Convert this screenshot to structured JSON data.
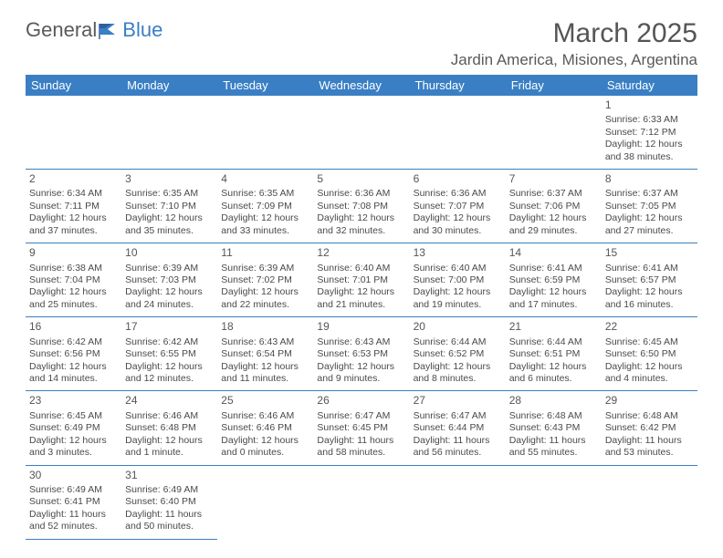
{
  "brand": {
    "part1": "General",
    "part2": "Blue"
  },
  "title": "March 2025",
  "location": "Jardin America, Misiones, Argentina",
  "colors": {
    "accent": "#3a7fc4",
    "text": "#4a4a4a",
    "bg": "#ffffff"
  },
  "weekdays": [
    "Sunday",
    "Monday",
    "Tuesday",
    "Wednesday",
    "Thursday",
    "Friday",
    "Saturday"
  ],
  "weeks": [
    [
      null,
      null,
      null,
      null,
      null,
      null,
      {
        "n": "1",
        "sr": "6:33 AM",
        "ss": "7:12 PM",
        "dl": "12 hours and 38 minutes."
      }
    ],
    [
      {
        "n": "2",
        "sr": "6:34 AM",
        "ss": "7:11 PM",
        "dl": "12 hours and 37 minutes."
      },
      {
        "n": "3",
        "sr": "6:35 AM",
        "ss": "7:10 PM",
        "dl": "12 hours and 35 minutes."
      },
      {
        "n": "4",
        "sr": "6:35 AM",
        "ss": "7:09 PM",
        "dl": "12 hours and 33 minutes."
      },
      {
        "n": "5",
        "sr": "6:36 AM",
        "ss": "7:08 PM",
        "dl": "12 hours and 32 minutes."
      },
      {
        "n": "6",
        "sr": "6:36 AM",
        "ss": "7:07 PM",
        "dl": "12 hours and 30 minutes."
      },
      {
        "n": "7",
        "sr": "6:37 AM",
        "ss": "7:06 PM",
        "dl": "12 hours and 29 minutes."
      },
      {
        "n": "8",
        "sr": "6:37 AM",
        "ss": "7:05 PM",
        "dl": "12 hours and 27 minutes."
      }
    ],
    [
      {
        "n": "9",
        "sr": "6:38 AM",
        "ss": "7:04 PM",
        "dl": "12 hours and 25 minutes."
      },
      {
        "n": "10",
        "sr": "6:39 AM",
        "ss": "7:03 PM",
        "dl": "12 hours and 24 minutes."
      },
      {
        "n": "11",
        "sr": "6:39 AM",
        "ss": "7:02 PM",
        "dl": "12 hours and 22 minutes."
      },
      {
        "n": "12",
        "sr": "6:40 AM",
        "ss": "7:01 PM",
        "dl": "12 hours and 21 minutes."
      },
      {
        "n": "13",
        "sr": "6:40 AM",
        "ss": "7:00 PM",
        "dl": "12 hours and 19 minutes."
      },
      {
        "n": "14",
        "sr": "6:41 AM",
        "ss": "6:59 PM",
        "dl": "12 hours and 17 minutes."
      },
      {
        "n": "15",
        "sr": "6:41 AM",
        "ss": "6:57 PM",
        "dl": "12 hours and 16 minutes."
      }
    ],
    [
      {
        "n": "16",
        "sr": "6:42 AM",
        "ss": "6:56 PM",
        "dl": "12 hours and 14 minutes."
      },
      {
        "n": "17",
        "sr": "6:42 AM",
        "ss": "6:55 PM",
        "dl": "12 hours and 12 minutes."
      },
      {
        "n": "18",
        "sr": "6:43 AM",
        "ss": "6:54 PM",
        "dl": "12 hours and 11 minutes."
      },
      {
        "n": "19",
        "sr": "6:43 AM",
        "ss": "6:53 PM",
        "dl": "12 hours and 9 minutes."
      },
      {
        "n": "20",
        "sr": "6:44 AM",
        "ss": "6:52 PM",
        "dl": "12 hours and 8 minutes."
      },
      {
        "n": "21",
        "sr": "6:44 AM",
        "ss": "6:51 PM",
        "dl": "12 hours and 6 minutes."
      },
      {
        "n": "22",
        "sr": "6:45 AM",
        "ss": "6:50 PM",
        "dl": "12 hours and 4 minutes."
      }
    ],
    [
      {
        "n": "23",
        "sr": "6:45 AM",
        "ss": "6:49 PM",
        "dl": "12 hours and 3 minutes."
      },
      {
        "n": "24",
        "sr": "6:46 AM",
        "ss": "6:48 PM",
        "dl": "12 hours and 1 minute."
      },
      {
        "n": "25",
        "sr": "6:46 AM",
        "ss": "6:46 PM",
        "dl": "12 hours and 0 minutes."
      },
      {
        "n": "26",
        "sr": "6:47 AM",
        "ss": "6:45 PM",
        "dl": "11 hours and 58 minutes."
      },
      {
        "n": "27",
        "sr": "6:47 AM",
        "ss": "6:44 PM",
        "dl": "11 hours and 56 minutes."
      },
      {
        "n": "28",
        "sr": "6:48 AM",
        "ss": "6:43 PM",
        "dl": "11 hours and 55 minutes."
      },
      {
        "n": "29",
        "sr": "6:48 AM",
        "ss": "6:42 PM",
        "dl": "11 hours and 53 minutes."
      }
    ],
    [
      {
        "n": "30",
        "sr": "6:49 AM",
        "ss": "6:41 PM",
        "dl": "11 hours and 52 minutes."
      },
      {
        "n": "31",
        "sr": "6:49 AM",
        "ss": "6:40 PM",
        "dl": "11 hours and 50 minutes."
      },
      null,
      null,
      null,
      null,
      null
    ]
  ],
  "labels": {
    "sunrise": "Sunrise: ",
    "sunset": "Sunset: ",
    "daylight": "Daylight: "
  }
}
